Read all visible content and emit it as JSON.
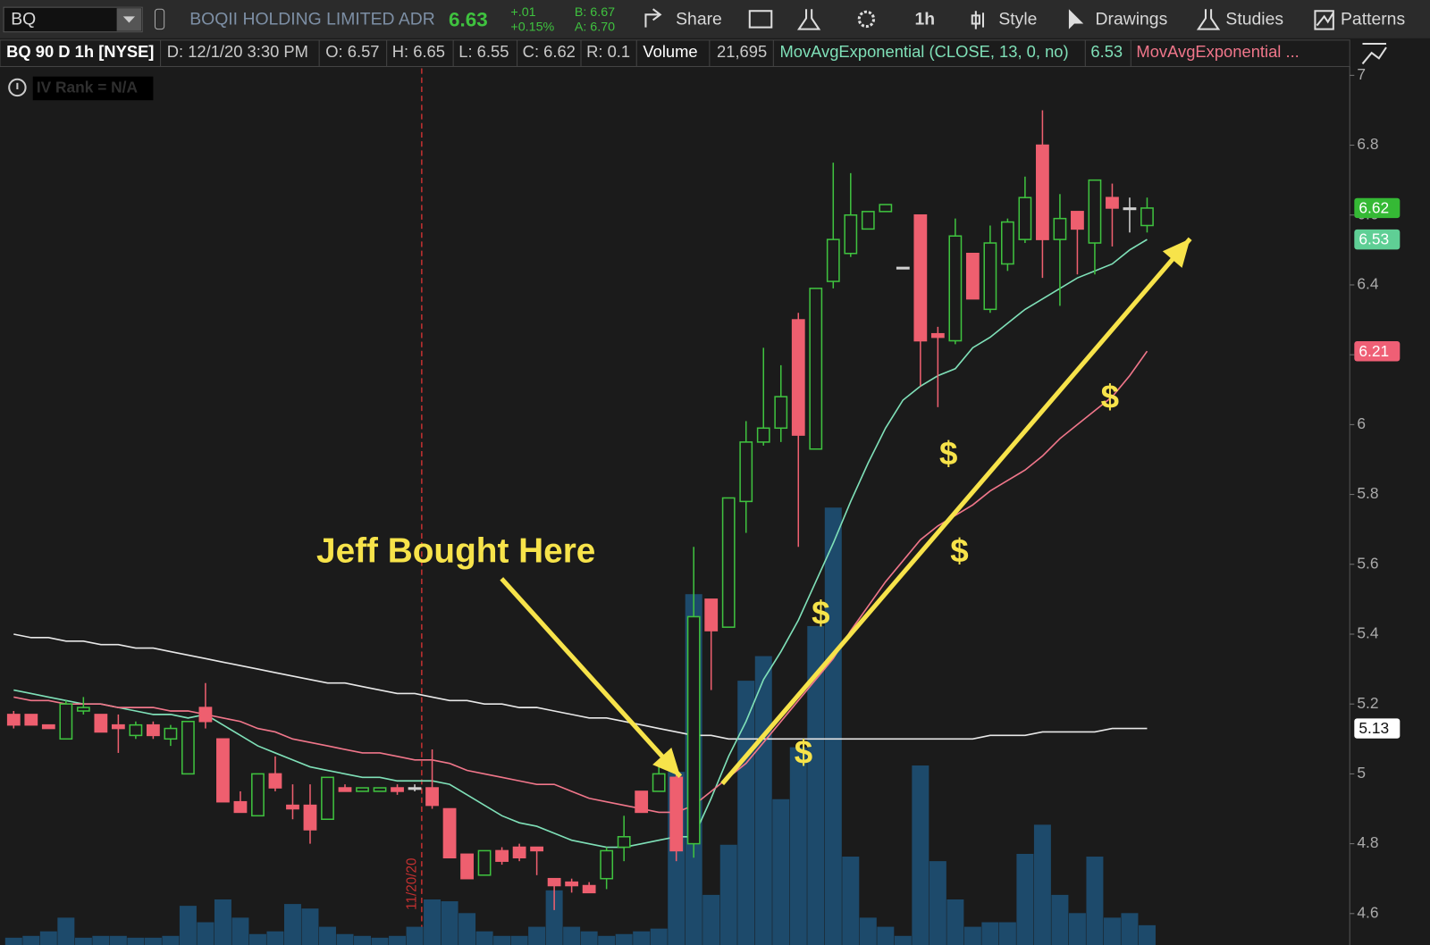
{
  "toolbar": {
    "symbol": "BQ",
    "company": "BOQII HOLDING LIMITED ADR",
    "last": "6.63",
    "change": "+.01",
    "change_pct": "+0.15%",
    "bid": "B: 6.67",
    "ask": "A: 6.70",
    "buttons": [
      "Share",
      "1h",
      "Style",
      "Drawings",
      "Studies",
      "Patterns"
    ]
  },
  "header": {
    "title": "BQ 90 D 1h [NYSE]",
    "fields": [
      "D: 12/1/20 3:30 PM",
      "O: 6.57",
      "H: 6.65",
      "L: 6.55",
      "C: 6.62",
      "R: 0.1",
      "Volume",
      "21,695",
      "MovAvgExponential (CLOSE, 13, 0, no)",
      "6.53",
      "MovAvgExponential ..."
    ]
  },
  "iv_rank": "IV Rank = N/A",
  "chart_data": {
    "type": "candlestick",
    "open": [
      5.17,
      5.17,
      5.14,
      5.1,
      5.18,
      5.17,
      5.14,
      5.11,
      5.14,
      5.1,
      5.0,
      5.19,
      5.1,
      4.92,
      4.88,
      5.0,
      4.91,
      4.91,
      4.87,
      4.96,
      4.95,
      4.95,
      4.96,
      4.96,
      4.96,
      4.9,
      4.77,
      4.71,
      4.78,
      4.79,
      4.79,
      4.7,
      4.69,
      4.68,
      4.7,
      4.79,
      4.95,
      4.95,
      4.99,
      4.8,
      5.5,
      5.42,
      5.78,
      5.95,
      5.99,
      6.3,
      5.93,
      6.41,
      6.49,
      6.56,
      6.61,
      6.45,
      6.6,
      6.26,
      6.24,
      6.49,
      6.33,
      6.46,
      6.53,
      6.8,
      6.53,
      6.61,
      6.52,
      6.65,
      6.62,
      6.57
    ],
    "high": [
      5.18,
      5.17,
      5.14,
      5.21,
      5.22,
      5.17,
      5.17,
      5.15,
      5.15,
      5.14,
      5.15,
      5.26,
      5.1,
      4.95,
      5.0,
      5.05,
      4.97,
      4.97,
      4.99,
      4.97,
      4.96,
      4.96,
      4.97,
      4.97,
      5.07,
      4.9,
      4.77,
      4.78,
      4.79,
      4.8,
      4.79,
      4.7,
      4.7,
      4.69,
      4.79,
      4.88,
      4.95,
      5.02,
      5.0,
      5.65,
      5.5,
      5.79,
      6.01,
      6.22,
      6.17,
      6.32,
      6.39,
      6.75,
      6.72,
      6.61,
      6.63,
      6.45,
      6.6,
      6.28,
      6.59,
      6.49,
      6.57,
      6.59,
      6.71,
      6.9,
      6.66,
      6.61,
      6.7,
      6.69,
      6.65,
      6.65
    ],
    "low": [
      5.13,
      5.14,
      5.13,
      5.1,
      5.17,
      5.12,
      5.06,
      5.1,
      5.1,
      5.08,
      5.0,
      5.13,
      4.92,
      4.89,
      4.88,
      4.95,
      4.87,
      4.8,
      4.87,
      4.95,
      4.95,
      4.95,
      4.94,
      4.95,
      4.9,
      4.76,
      4.7,
      4.71,
      4.74,
      4.75,
      4.71,
      4.61,
      4.66,
      4.66,
      4.67,
      4.75,
      4.89,
      4.95,
      4.75,
      4.76,
      5.24,
      5.42,
      5.69,
      5.94,
      5.95,
      5.65,
      5.93,
      6.39,
      6.48,
      6.56,
      6.61,
      6.45,
      6.11,
      6.05,
      6.23,
      6.36,
      6.32,
      6.44,
      6.52,
      6.42,
      6.34,
      6.43,
      6.43,
      6.51,
      6.55,
      6.55
    ],
    "close": [
      5.14,
      5.14,
      5.13,
      5.2,
      5.19,
      5.12,
      5.13,
      5.14,
      5.11,
      5.13,
      5.15,
      5.15,
      4.92,
      4.89,
      5.0,
      4.96,
      4.9,
      4.84,
      4.99,
      4.95,
      4.96,
      4.96,
      4.95,
      4.96,
      4.91,
      4.76,
      4.7,
      4.78,
      4.75,
      4.76,
      4.78,
      4.68,
      4.68,
      4.66,
      4.78,
      4.82,
      4.89,
      5.0,
      4.78,
      5.45,
      5.41,
      5.79,
      5.95,
      5.99,
      6.08,
      5.97,
      6.39,
      6.53,
      6.6,
      6.61,
      6.63,
      6.45,
      6.24,
      6.25,
      6.54,
      6.36,
      6.52,
      6.58,
      6.65,
      6.53,
      6.59,
      6.56,
      6.7,
      6.62,
      6.62,
      6.62
    ],
    "volume": [
      8000,
      10000,
      15000,
      30000,
      8000,
      10000,
      10000,
      8000,
      8000,
      10000,
      43000,
      25000,
      50000,
      30000,
      12000,
      15000,
      45000,
      40000,
      20000,
      12000,
      10000,
      8000,
      10000,
      20000,
      50000,
      48000,
      35000,
      15000,
      10000,
      10000,
      20000,
      60000,
      20000,
      15000,
      10000,
      12000,
      15000,
      18000,
      190000,
      385000,
      55000,
      110000,
      290000,
      317000,
      160000,
      217000,
      350000,
      480000,
      97000,
      30000,
      20000,
      10000,
      197000,
      92000,
      50000,
      20000,
      25000,
      25000,
      100000,
      132000,
      55000,
      35000,
      97000,
      30000,
      35000,
      21695
    ],
    "up_color": "#3fc23f",
    "down_color": "#ee5f6f",
    "doji_color": "#d0d0d0",
    "volume_color": "#1d4a6b",
    "series": [
      {
        "color": "#e8e8e8",
        "values": [
          5.4,
          5.39,
          5.39,
          5.38,
          5.38,
          5.37,
          5.37,
          5.36,
          5.36,
          5.35,
          5.34,
          5.33,
          5.32,
          5.31,
          5.3,
          5.29,
          5.28,
          5.27,
          5.26,
          5.26,
          5.25,
          5.24,
          5.23,
          5.23,
          5.22,
          5.21,
          5.21,
          5.2,
          5.2,
          5.19,
          5.19,
          5.18,
          5.17,
          5.16,
          5.16,
          5.15,
          5.14,
          5.13,
          5.12,
          5.11,
          5.11,
          5.1,
          5.1,
          5.1,
          5.1,
          5.1,
          5.1,
          5.1,
          5.1,
          5.1,
          5.1,
          5.1,
          5.1,
          5.1,
          5.1,
          5.1,
          5.11,
          5.11,
          5.11,
          5.12,
          5.12,
          5.12,
          5.12,
          5.13,
          5.13,
          5.13
        ],
        "label_bg": "#ffffff",
        "label_fg": "#111111"
      },
      {
        "color": "#7fe0b8",
        "values": [
          5.24,
          5.23,
          5.22,
          5.21,
          5.2,
          5.2,
          5.19,
          5.18,
          5.17,
          5.17,
          5.16,
          5.17,
          5.14,
          5.11,
          5.08,
          5.06,
          5.04,
          5.02,
          5.01,
          5.0,
          4.99,
          4.99,
          4.98,
          4.98,
          4.98,
          4.97,
          4.94,
          4.91,
          4.88,
          4.86,
          4.85,
          4.83,
          4.81,
          4.8,
          4.79,
          4.79,
          4.8,
          4.81,
          4.82,
          4.82,
          4.93,
          5.05,
          5.15,
          5.27,
          5.35,
          5.44,
          5.55,
          5.66,
          5.78,
          5.89,
          5.99,
          6.07,
          6.11,
          6.14,
          6.16,
          6.22,
          6.25,
          6.29,
          6.33,
          6.36,
          6.39,
          6.42,
          6.44,
          6.46,
          6.5,
          6.53
        ],
        "label_bg": "#5fcf95",
        "label_fg": "#ffffff"
      },
      {
        "color": "#f0768a",
        "values": [
          5.22,
          5.21,
          5.21,
          5.2,
          5.2,
          5.2,
          5.19,
          5.19,
          5.19,
          5.18,
          5.18,
          5.17,
          5.16,
          5.15,
          5.13,
          5.12,
          5.1,
          5.09,
          5.08,
          5.07,
          5.06,
          5.06,
          5.05,
          5.04,
          5.04,
          5.03,
          5.01,
          5.0,
          4.99,
          4.98,
          4.97,
          4.97,
          4.95,
          4.93,
          4.92,
          4.91,
          4.9,
          4.89,
          4.89,
          4.91,
          4.95,
          4.99,
          5.03,
          5.09,
          5.15,
          5.21,
          5.27,
          5.33,
          5.41,
          5.48,
          5.55,
          5.61,
          5.67,
          5.71,
          5.74,
          5.77,
          5.81,
          5.84,
          5.87,
          5.91,
          5.96,
          6.0,
          6.04,
          6.08,
          6.14,
          6.21
        ],
        "label_bg": "#ef5f75",
        "label_fg": "#ffffff"
      }
    ],
    "close_label_bg": "#35b935",
    "ylim": [
      4.51,
      7.02
    ],
    "yticks": [
      4.6,
      4.8,
      5,
      5.2,
      5.4,
      5.6,
      5.8,
      6,
      6.2,
      6.4,
      6.6,
      6.8,
      7
    ],
    "grid": false,
    "date_marker": "11/20/20",
    "date_marker_color": "#c23030",
    "annotations": [
      "Jeff Bought Here",
      "$",
      "$",
      "$",
      "$",
      "$"
    ],
    "annotation_color": "#f7e34a"
  }
}
